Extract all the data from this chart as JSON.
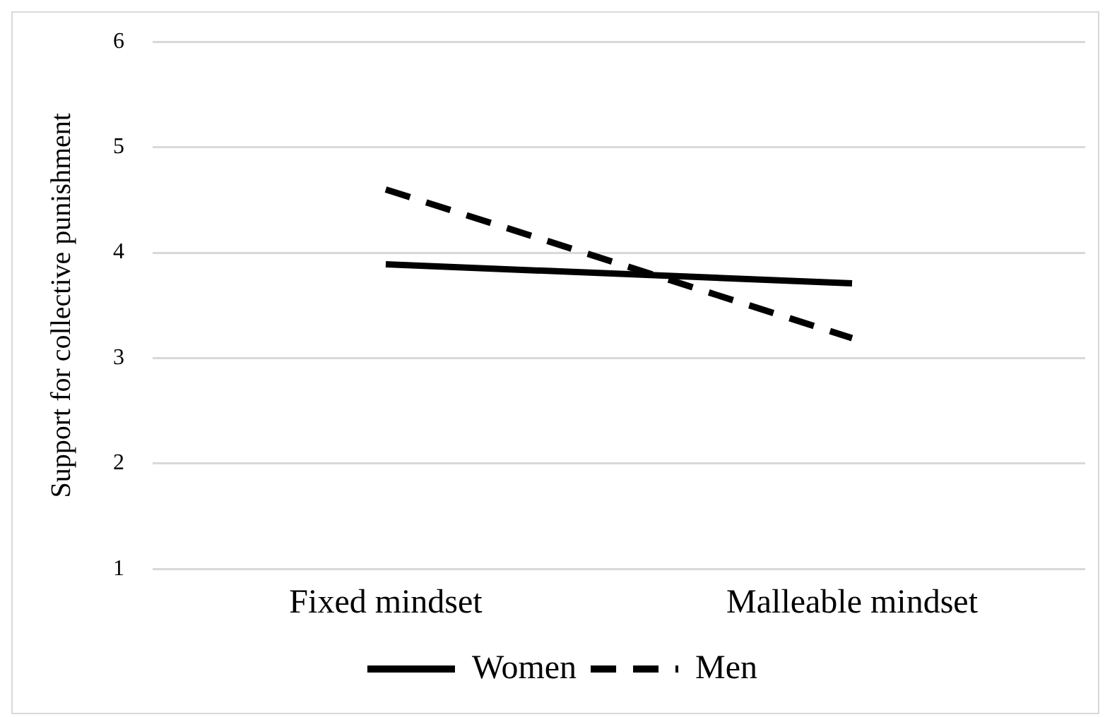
{
  "chart_data": {
    "type": "line",
    "ylabel": "Support for collective punishment",
    "categories": [
      "Fixed mindset",
      "Malleable mindset"
    ],
    "series": [
      {
        "name": "Women",
        "color": "#000000",
        "values": [
          3.89,
          3.71
        ],
        "line_style": "solid"
      },
      {
        "name": "Men",
        "color": "#000000",
        "values": [
          4.6,
          3.19
        ],
        "line_style": "dashed"
      }
    ],
    "ylim": [
      1,
      6
    ],
    "yticks": [
      1,
      2,
      3,
      4,
      5,
      6
    ],
    "grid": "y",
    "legend": "bottom",
    "marker": "none"
  }
}
